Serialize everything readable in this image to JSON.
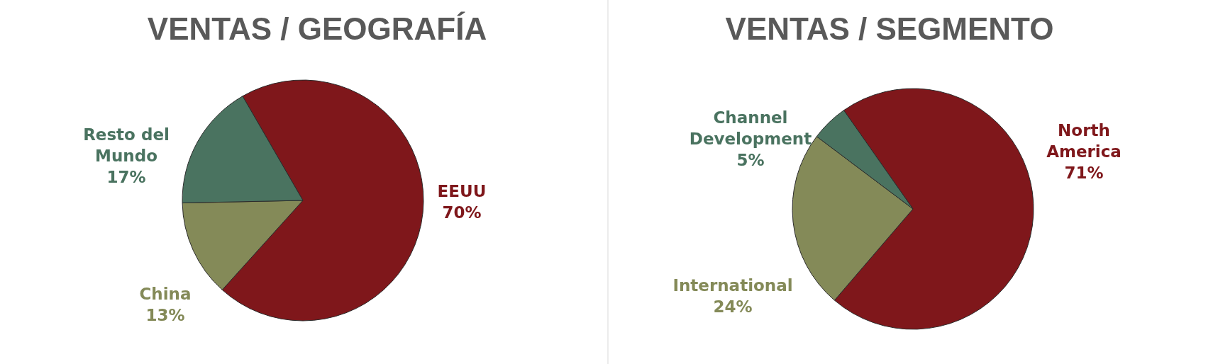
{
  "chart_data": [
    {
      "type": "pie",
      "title": "VENTAS / GEOGRAFÍA",
      "categories": [
        "EEUU",
        "China",
        "Resto del Mundo"
      ],
      "values": [
        70,
        13,
        17
      ],
      "colors": [
        "#7f171b",
        "#848a58",
        "#4a7360"
      ],
      "value_labels": [
        "70%",
        "13%",
        "17%"
      ]
    },
    {
      "type": "pie",
      "title": "VENTAS / SEGMENTO",
      "categories": [
        "North America",
        "International",
        "Channel Development"
      ],
      "values": [
        71,
        24,
        5
      ],
      "colors": [
        "#7f171b",
        "#848a58",
        "#4a7360"
      ],
      "value_labels": [
        "71%",
        "24%",
        "5%"
      ]
    }
  ]
}
